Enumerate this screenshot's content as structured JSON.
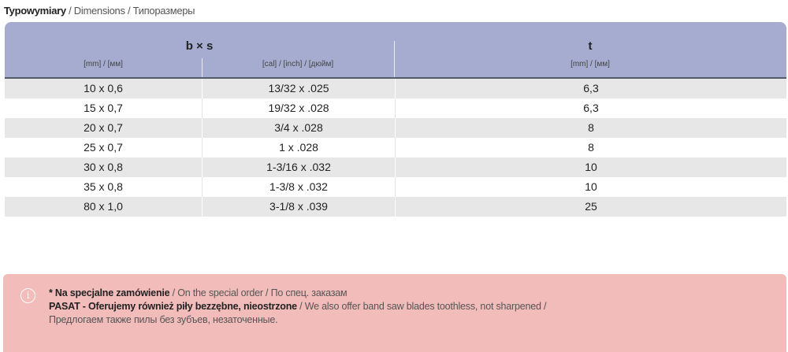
{
  "title": {
    "bold": "Typowymiary",
    "rest": " / Dimensions / Типоразмеры"
  },
  "table": {
    "header": {
      "bxs": "b × s",
      "mm": "[mm] / [мм]",
      "inch": "[cal] / [inch] / [дюйм]",
      "t": "t",
      "t_unit": "[mm] / [мм]"
    },
    "rows": [
      {
        "mm": "10 x 0,6",
        "inch": "13/32 x .025",
        "t": "6,3"
      },
      {
        "mm": "15 x 0,7",
        "inch": "19/32 x .028",
        "t": "6,3"
      },
      {
        "mm": "20 x 0,7",
        "inch": "3/4 x .028",
        "t": "8"
      },
      {
        "mm": "25 x 0,7",
        "inch": "1 x .028",
        "t": "8"
      },
      {
        "mm": "30 x 0,8",
        "inch": "1-3/16 x .032",
        "t": "10"
      },
      {
        "mm": "35 x 0,8",
        "inch": "1-3/8 x .032",
        "t": "10"
      },
      {
        "mm": "80 x 1,0",
        "inch": "3-1/8 x .039",
        "t": "25"
      }
    ]
  },
  "note": {
    "icon": "info-icon",
    "line1_bold": "* Na specjalne zamówienie",
    "line1_rest": " / On the special order / По спец. заказам",
    "line2_bold": "PASAT - Oferujemy również piły bezzębne, nieostrzone",
    "line2_rest": " / We also offer band saw blades toothless, not sharpened /",
    "line3": "Предлогаем также пилы без зубъев, незаточенные."
  },
  "colors": {
    "header": "#a5acd0",
    "stripe": "#e7e7e7",
    "note": "#f2bcbb"
  }
}
